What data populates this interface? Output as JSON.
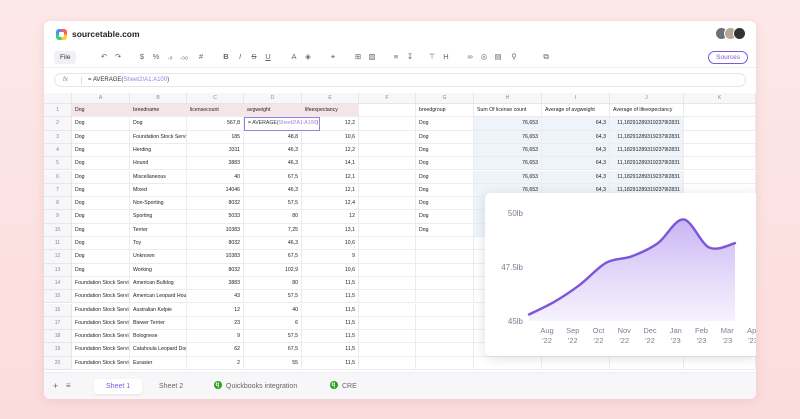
{
  "app": {
    "brand": "sourcetable.com"
  },
  "toolbar": {
    "file_label": "File",
    "icons": [
      "undo-icon",
      "redo-icon",
      "dollar-icon",
      "percent-icon",
      "decimal-decrease-icon",
      "decimal-increase-icon",
      "number-format-icon",
      "bold-icon",
      "italic-icon",
      "strikethrough-icon",
      "underline-icon",
      "text-color-icon",
      "fill-color-icon",
      "paint-format-icon",
      "borders-icon",
      "merge-icon",
      "align-left-icon",
      "align-vertical-icon",
      "align-top-icon",
      "align-middle-icon",
      "link-icon",
      "comment-icon",
      "chart-icon",
      "filter-icon"
    ],
    "sources_label": "Sources"
  },
  "formula_bar": {
    "fx": "fx",
    "prefix": "= AVERAGE(",
    "ref": "Sheet2!A1:A100",
    "suffix": ")"
  },
  "grid": {
    "columns": [
      "A",
      "B",
      "C",
      "D",
      "E",
      "F",
      "G",
      "H",
      "I",
      "J",
      "K"
    ],
    "rows": [
      "1",
      "2",
      "3",
      "4",
      "5",
      "6",
      "7",
      "8",
      "9",
      "10",
      "11",
      "12",
      "13",
      "14",
      "15",
      "16",
      "17",
      "18",
      "19",
      "20"
    ],
    "headers": [
      "Dog",
      "breedname",
      "licensecount",
      "avgweight",
      "lifeexpectancy"
    ],
    "data": [
      [
        "Dog",
        "Dog",
        "567,8",
        "",
        "12,2"
      ],
      [
        "Dog",
        "Foundation Stock Servi",
        "185",
        "48,8",
        "10,6"
      ],
      [
        "Dog",
        "Herding",
        "3311",
        "46,3",
        "12,2"
      ],
      [
        "Dog",
        "Hound",
        "3883",
        "46,3",
        "14,1"
      ],
      [
        "Dog",
        "Miscellaneous",
        "40",
        "67,5",
        "12,1"
      ],
      [
        "Dog",
        "Mixed",
        "14046",
        "46,3",
        "12,1"
      ],
      [
        "Dog",
        "Non-Sporting",
        "8032",
        "57,5",
        "12,4"
      ],
      [
        "Dog",
        "Sporting",
        "5033",
        "80",
        "12"
      ],
      [
        "Dog",
        "Terrier",
        "10383",
        "7,25",
        "13,1"
      ],
      [
        "Dog",
        "Toy",
        "8032",
        "46,3",
        "10,6"
      ],
      [
        "Dog",
        "Unknown",
        "10383",
        "67,5",
        "9"
      ],
      [
        "Dog",
        "Working",
        "8032",
        "102,9",
        "10,6"
      ],
      [
        "Foundation Stock Servi",
        "American Bulldog",
        "3883",
        "80",
        "11,5"
      ],
      [
        "Foundation Stock Servi",
        "American Leopard Houn",
        "43",
        "57,5",
        "11,5"
      ],
      [
        "Foundation Stock Servi",
        "Australian Kelpie",
        "12",
        "40",
        "11,5"
      ],
      [
        "Foundation Stock Servi",
        "Biewer Terrier",
        "23",
        "6",
        "11,5"
      ],
      [
        "Foundation Stock Servi",
        "Bolognese",
        "9",
        "57,5",
        "11,5"
      ],
      [
        "Foundation Stock Servi",
        "Catahoula Leopard Dog",
        "62",
        "67,5",
        "11,5"
      ],
      [
        "Foundation Stock Servi",
        "Eurasier",
        "2",
        "55",
        "11,5"
      ]
    ],
    "selected_formula": {
      "prefix": "= AVERAGE(",
      "ref": "Sheet2!A1:A100",
      "suffix": ")"
    },
    "pivot_headers": [
      "breedgroup",
      "Sum Of license count",
      "Average of avgweight",
      "Average of lifeexpectancy"
    ],
    "pivot_rows": [
      [
        "Dog",
        "76,653",
        "64,3",
        "11,182912893192379l2831"
      ],
      [
        "Dog",
        "76,653",
        "64,3",
        "11,182912893192379l2831"
      ],
      [
        "Dog",
        "76,653",
        "64,3",
        "11,182912893192379l2831"
      ],
      [
        "Dog",
        "76,653",
        "64,3",
        "11,182912893192379l2831"
      ],
      [
        "Dog",
        "76,653",
        "64,3",
        "11,182912893192379l2831"
      ],
      [
        "Dog",
        "76,653",
        "64,3",
        "11,182912893192379l2831"
      ],
      [
        "Dog",
        "",
        "",
        ""
      ],
      [
        "Dog",
        "",
        "",
        ""
      ],
      [
        "Dog",
        "",
        "",
        ""
      ]
    ]
  },
  "chart_data": {
    "type": "area",
    "x": [
      "Aug '22",
      "Sep '22",
      "Oct '22",
      "Nov '22",
      "Dec '22",
      "Jan '23",
      "Feb '23",
      "Mar '23",
      "Apr '23"
    ],
    "x_lines": [
      [
        "Aug",
        "'22"
      ],
      [
        "Sep",
        "'22"
      ],
      [
        "Oct",
        "'22"
      ],
      [
        "Nov",
        "'22"
      ],
      [
        "Dec",
        "'22"
      ],
      [
        "Jan",
        "'23"
      ],
      [
        "Feb",
        "'23"
      ],
      [
        "Mar",
        "'23"
      ],
      [
        "Apr",
        "'23"
      ]
    ],
    "values": [
      45.3,
      45.9,
      46.7,
      47.7,
      48.0,
      48.6,
      49.7,
      48.4,
      48.6
    ],
    "yticks": [
      "50lb",
      "47.5lb",
      "45lb"
    ],
    "ylim": [
      45,
      50
    ],
    "color": "#7d55d8",
    "title": "",
    "xlabel": "",
    "ylabel": ""
  },
  "tabs": {
    "items": [
      {
        "label": "Sheet 1",
        "active": true
      },
      {
        "label": "Sheet 2",
        "active": false
      },
      {
        "label": "Quickbooks integration",
        "active": false
      },
      {
        "label": "CRE",
        "active": false
      }
    ]
  }
}
